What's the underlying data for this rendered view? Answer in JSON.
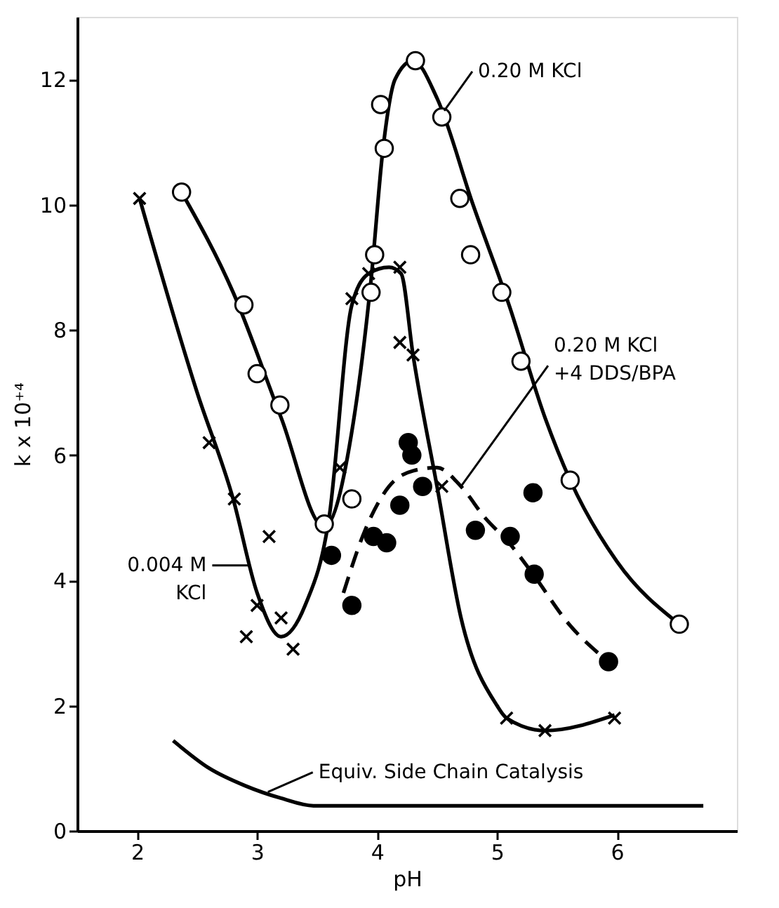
{
  "chart_data": {
    "type": "scatter",
    "xlabel": "pH",
    "ylabel": "k x 10⁺⁴",
    "xlim": [
      1.5,
      7.0
    ],
    "ylim": [
      0,
      13
    ],
    "xticks": [
      2,
      3,
      4,
      5,
      6
    ],
    "yticks": [
      0,
      2,
      4,
      6,
      8,
      10,
      12
    ],
    "grid": false,
    "series": [
      {
        "type": "scatter",
        "marker": "circle",
        "color": "#ffffff",
        "x": [
          2.37,
          2.89,
          3.0,
          3.19,
          3.56,
          3.79,
          3.95,
          3.98,
          4.03,
          4.06,
          4.32,
          4.54,
          4.69,
          4.78,
          5.04,
          5.2,
          5.61,
          6.52
        ],
        "values": [
          10.2,
          8.4,
          7.3,
          6.8,
          4.9,
          5.3,
          8.6,
          9.2,
          11.6,
          10.9,
          12.3,
          11.4,
          10.1,
          9.2,
          8.6,
          7.5,
          5.6,
          3.3
        ]
      },
      {
        "type": "line",
        "line_style": "solid",
        "color": "#000000",
        "x": [
          2.37,
          2.8,
          3.2,
          3.56,
          3.8,
          3.95,
          4.05,
          4.15,
          4.3,
          4.5,
          4.8,
          5.1,
          5.4,
          5.61,
          6.0,
          6.52
        ],
        "values": [
          10.2,
          8.6,
          6.6,
          4.85,
          6.5,
          8.8,
          10.9,
          12.0,
          12.3,
          11.7,
          10.0,
          8.4,
          6.6,
          5.6,
          4.3,
          3.3
        ]
      },
      {
        "type": "scatter",
        "marker": "cross",
        "color": "#000000",
        "x": [
          2.02,
          2.6,
          2.81,
          2.91,
          3.0,
          3.1,
          3.2,
          3.3,
          3.69,
          3.79,
          3.93,
          4.19,
          4.19,
          4.3,
          4.54,
          5.08,
          5.4,
          5.98
        ],
        "values": [
          10.1,
          6.2,
          5.3,
          3.1,
          3.6,
          4.7,
          3.4,
          2.9,
          5.8,
          8.5,
          8.9,
          9.0,
          7.8,
          7.6,
          5.5,
          1.8,
          1.6,
          1.8
        ]
      },
      {
        "type": "line",
        "line_style": "solid",
        "color": "#000000",
        "x": [
          2.02,
          2.5,
          2.8,
          3.0,
          3.2,
          3.4,
          3.6,
          3.79,
          3.93,
          4.1,
          4.2,
          4.3,
          4.5,
          4.7,
          5.0,
          5.08,
          5.4,
          5.98
        ],
        "values": [
          10.1,
          7.0,
          5.3,
          3.8,
          3.1,
          3.6,
          5.0,
          8.4,
          8.9,
          9.0,
          8.9,
          7.6,
          5.5,
          3.4,
          2.0,
          1.8,
          1.6,
          1.85
        ]
      },
      {
        "type": "scatter",
        "marker": "circle",
        "color": "#000000",
        "x": [
          3.62,
          3.79,
          3.97,
          4.08,
          4.19,
          4.26,
          4.29,
          4.38,
          4.82,
          5.11,
          5.3,
          5.31,
          5.93
        ],
        "values": [
          4.4,
          3.6,
          4.7,
          4.6,
          5.2,
          6.2,
          6.0,
          5.5,
          4.8,
          4.7,
          5.4,
          4.1,
          2.7
        ]
      },
      {
        "type": "line",
        "line_style": "dashed",
        "color": "#000000",
        "x": [
          3.72,
          3.9,
          4.1,
          4.3,
          4.5,
          4.7,
          4.9,
          5.1,
          5.3,
          5.6,
          5.93
        ],
        "values": [
          3.8,
          4.8,
          5.5,
          5.75,
          5.8,
          5.5,
          5.0,
          4.6,
          4.1,
          3.3,
          2.7
        ]
      },
      {
        "type": "line",
        "line_style": "solid",
        "color": "#000000",
        "x": [
          2.3,
          2.6,
          2.9,
          3.2,
          3.47,
          6.72
        ],
        "values": [
          1.44,
          1.0,
          0.72,
          0.52,
          0.4,
          0.4
        ]
      }
    ],
    "annotations": [
      {
        "text": "0.20 M KCl",
        "x": 4.56,
        "y": 11.5
      },
      {
        "text": "0.20 M KCl\n+4 DDS/BPA",
        "x": 4.7,
        "y": 5.5
      },
      {
        "text": "0.004 M\nKCl",
        "x": 2.93,
        "y": 4.24
      },
      {
        "text": "Equiv. Side Chain Catalysis",
        "x": 3.09,
        "y": 0.62
      }
    ]
  }
}
